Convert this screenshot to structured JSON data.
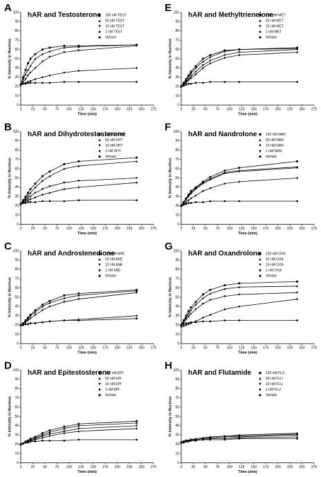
{
  "chart_data": [
    {
      "type": "line",
      "label": "A",
      "title": "hAR and Testosterone",
      "xlabel": "Time (min)",
      "ylabel": "% Intensity in Nucleus",
      "x": [
        0,
        5,
        10,
        15,
        20,
        30,
        45,
        60,
        90,
        120,
        240
      ],
      "xlim": [
        0,
        275
      ],
      "ylim": [
        0,
        100
      ],
      "xticks": [
        0,
        25,
        50,
        75,
        100,
        125,
        150,
        175,
        200,
        225,
        250,
        275
      ],
      "yticks": [
        0,
        10,
        20,
        30,
        40,
        50,
        60,
        70,
        80,
        90,
        100
      ],
      "series": [
        {
          "name": "100 nM TEST",
          "marker": "square",
          "color": "#000000",
          "values": [
            22,
            30,
            38,
            45,
            50,
            55,
            60,
            62,
            64,
            64,
            65
          ]
        },
        {
          "name": "50 nM TEST",
          "marker": "triangle-up",
          "color": "#000000",
          "values": [
            22,
            28,
            33,
            38,
            42,
            50,
            55,
            58,
            62,
            63,
            65
          ]
        },
        {
          "name": "10 nM TEST",
          "marker": "triangle-down",
          "color": "#000000",
          "values": [
            22,
            25,
            28,
            32,
            35,
            40,
            47,
            52,
            57,
            59,
            64
          ]
        },
        {
          "name": "1 nM TEST",
          "marker": "diamond",
          "color": "#000000",
          "values": [
            22,
            23,
            24,
            25,
            26,
            28,
            30,
            32,
            35,
            37,
            40
          ]
        },
        {
          "name": "Vehicle",
          "marker": "circle",
          "color": "#000000",
          "values": [
            22,
            23,
            23,
            24,
            24,
            24,
            24,
            24,
            25,
            25,
            25
          ]
        }
      ]
    },
    {
      "type": "line",
      "label": "B",
      "title": "hAR and Dihydrotestosterone",
      "xlabel": "Time (min)",
      "ylabel": "% Intensity in Nucleus",
      "x": [
        0,
        5,
        10,
        15,
        20,
        30,
        45,
        60,
        90,
        120,
        240
      ],
      "xlim": [
        0,
        275
      ],
      "ylim": [
        0,
        100
      ],
      "xticks": [
        0,
        25,
        50,
        75,
        100,
        125,
        150,
        175,
        200,
        225,
        250,
        275
      ],
      "yticks": [
        0,
        10,
        20,
        30,
        40,
        50,
        60,
        70,
        80,
        90,
        100
      ],
      "series": [
        {
          "name": "100 nM DHT",
          "marker": "square",
          "color": "#000000",
          "values": [
            22,
            26,
            30,
            34,
            38,
            44,
            52,
            57,
            65,
            68,
            72
          ]
        },
        {
          "name": "50 nM DHT",
          "marker": "triangle-up",
          "color": "#000000",
          "values": [
            22,
            25,
            28,
            31,
            34,
            40,
            47,
            52,
            60,
            63,
            68
          ]
        },
        {
          "name": "10 nM DHT",
          "marker": "triangle-down",
          "color": "#000000",
          "values": [
            22,
            24,
            26,
            28,
            30,
            34,
            38,
            41,
            45,
            47,
            50
          ]
        },
        {
          "name": "1 nM DHT",
          "marker": "diamond",
          "color": "#000000",
          "values": [
            22,
            23,
            25,
            26,
            27,
            29,
            32,
            34,
            38,
            40,
            45
          ]
        },
        {
          "name": "Vehicle",
          "marker": "circle",
          "color": "#000000",
          "values": [
            22,
            23,
            23,
            24,
            24,
            24,
            25,
            25,
            25,
            26,
            26
          ]
        }
      ]
    },
    {
      "type": "line",
      "label": "C",
      "title": "hAR and Androstenedione",
      "xlabel": "Time (min)",
      "ylabel": "% Intensity in Nucleus",
      "x": [
        0,
        5,
        10,
        15,
        20,
        30,
        45,
        60,
        90,
        120,
        240
      ],
      "xlim": [
        0,
        275
      ],
      "ylim": [
        0,
        100
      ],
      "xticks": [
        0,
        25,
        50,
        75,
        100,
        125,
        150,
        175,
        200,
        225,
        250,
        275
      ],
      "yticks": [
        0,
        10,
        20,
        30,
        40,
        50,
        60,
        70,
        80,
        90,
        100
      ],
      "series": [
        {
          "name": "100 nM ANE",
          "marker": "square",
          "color": "#000000",
          "values": [
            20,
            22,
            25,
            28,
            31,
            36,
            42,
            46,
            52,
            54,
            58
          ]
        },
        {
          "name": "50 nM ANE",
          "marker": "triangle-up",
          "color": "#000000",
          "values": [
            20,
            22,
            24,
            27,
            30,
            34,
            40,
            44,
            49,
            52,
            57
          ]
        },
        {
          "name": "10 nM ANE",
          "marker": "triangle-down",
          "color": "#000000",
          "values": [
            20,
            21,
            23,
            25,
            27,
            31,
            36,
            40,
            45,
            48,
            55
          ]
        },
        {
          "name": "1 nM ANE",
          "marker": "diamond",
          "color": "#000000",
          "values": [
            20,
            20,
            21,
            21,
            22,
            22,
            23,
            24,
            25,
            26,
            30
          ]
        },
        {
          "name": "Vehicle",
          "marker": "circle",
          "color": "#000000",
          "values": [
            20,
            20,
            21,
            21,
            22,
            22,
            23,
            24,
            25,
            25,
            27
          ]
        }
      ]
    },
    {
      "type": "line",
      "label": "D",
      "title": "hAR and Epitestosterone",
      "xlabel": "Time (min)",
      "ylabel": "% Intensity in Nucleus",
      "x": [
        0,
        5,
        10,
        15,
        20,
        30,
        45,
        60,
        90,
        120,
        240
      ],
      "xlim": [
        0,
        275
      ],
      "ylim": [
        0,
        100
      ],
      "xticks": [
        0,
        25,
        50,
        75,
        100,
        125,
        150,
        175,
        200,
        225,
        250,
        275
      ],
      "yticks": [
        0,
        10,
        20,
        30,
        40,
        50,
        60,
        70,
        80,
        90,
        100
      ],
      "series": [
        {
          "name": "100 nM EPI",
          "marker": "square",
          "color": "#000000",
          "values": [
            20,
            21,
            23,
            24,
            26,
            28,
            32,
            35,
            39,
            42,
            45
          ]
        },
        {
          "name": "50 nM EPI",
          "marker": "triangle-up",
          "color": "#000000",
          "values": [
            20,
            21,
            22,
            24,
            25,
            27,
            30,
            33,
            37,
            40,
            43
          ]
        },
        {
          "name": "10 nM EPI",
          "marker": "triangle-down",
          "color": "#000000",
          "values": [
            20,
            21,
            22,
            23,
            24,
            26,
            29,
            31,
            34,
            37,
            40
          ]
        },
        {
          "name": "1 nM EPI",
          "marker": "diamond",
          "color": "#000000",
          "values": [
            20,
            21,
            22,
            22,
            23,
            25,
            27,
            29,
            32,
            34,
            37
          ]
        },
        {
          "name": "Vehicle",
          "marker": "circle",
          "color": "#000000",
          "values": [
            20,
            21,
            22,
            22,
            23,
            23,
            24,
            24,
            24,
            25,
            25
          ]
        }
      ]
    },
    {
      "type": "line",
      "label": "E",
      "title": "hAR and Methyltrienelone",
      "xlabel": "Time (min)",
      "ylabel": "% Intensity in Nucleus",
      "x": [
        0,
        5,
        10,
        15,
        20,
        30,
        45,
        60,
        90,
        120,
        240
      ],
      "xlim": [
        0,
        275
      ],
      "ylim": [
        0,
        100
      ],
      "xticks": [
        0,
        25,
        50,
        75,
        100,
        125,
        150,
        175,
        200,
        225,
        250,
        275
      ],
      "yticks": [
        0,
        10,
        20,
        30,
        40,
        50,
        60,
        70,
        80,
        90,
        100
      ],
      "series": [
        {
          "name": "100 nM MET",
          "marker": "square",
          "color": "#000000",
          "values": [
            20,
            24,
            28,
            32,
            36,
            42,
            50,
            54,
            59,
            60,
            62
          ]
        },
        {
          "name": "50 nM MET",
          "marker": "triangle-up",
          "color": "#000000",
          "values": [
            20,
            23,
            27,
            31,
            34,
            40,
            47,
            52,
            58,
            60,
            61
          ]
        },
        {
          "name": "10 nM MET",
          "marker": "triangle-down",
          "color": "#000000",
          "values": [
            20,
            22,
            25,
            28,
            31,
            36,
            43,
            48,
            54,
            57,
            60
          ]
        },
        {
          "name": "1 nM MET",
          "marker": "diamond",
          "color": "#000000",
          "values": [
            20,
            22,
            24,
            27,
            29,
            33,
            40,
            45,
            51,
            54,
            57
          ]
        },
        {
          "name": "Vehicle",
          "marker": "circle",
          "color": "#000000",
          "values": [
            20,
            21,
            22,
            23,
            23,
            24,
            24,
            25,
            25,
            25,
            25
          ]
        }
      ]
    },
    {
      "type": "line",
      "label": "F",
      "title": "hAR and Nandrolone",
      "xlabel": "Time (min)",
      "ylabel": "% Intensity in Nucleus",
      "x": [
        0,
        5,
        10,
        15,
        20,
        30,
        45,
        60,
        90,
        120,
        240
      ],
      "xlim": [
        0,
        275
      ],
      "ylim": [
        0,
        100
      ],
      "xticks": [
        0,
        25,
        50,
        75,
        100,
        125,
        150,
        175,
        200,
        225,
        250,
        275
      ],
      "yticks": [
        0,
        10,
        20,
        30,
        40,
        50,
        60,
        70,
        80,
        90,
        100
      ],
      "series": [
        {
          "name": "100 nM NAN",
          "marker": "square",
          "color": "#000000",
          "values": [
            20,
            24,
            28,
            32,
            36,
            40,
            46,
            51,
            58,
            61,
            68
          ]
        },
        {
          "name": "50 nM NAN",
          "marker": "triangle-up",
          "color": "#000000",
          "values": [
            20,
            24,
            27,
            31,
            34,
            39,
            45,
            49,
            56,
            58,
            62
          ]
        },
        {
          "name": "10 nM NAN",
          "marker": "triangle-down",
          "color": "#000000",
          "values": [
            20,
            23,
            27,
            30,
            33,
            38,
            44,
            48,
            55,
            57,
            61
          ]
        },
        {
          "name": "1 nM NAN",
          "marker": "diamond",
          "color": "#000000",
          "values": [
            20,
            22,
            24,
            26,
            28,
            31,
            36,
            39,
            44,
            46,
            50
          ]
        },
        {
          "name": "Vehicle",
          "marker": "circle",
          "color": "#000000",
          "values": [
            20,
            21,
            22,
            23,
            23,
            24,
            24,
            25,
            25,
            25,
            25
          ]
        }
      ]
    },
    {
      "type": "line",
      "label": "G",
      "title": "hAR and Oxandrolone",
      "xlabel": "Time (min)",
      "ylabel": "% Intensity in Nucleus",
      "x": [
        0,
        5,
        10,
        15,
        20,
        30,
        45,
        60,
        90,
        120,
        240
      ],
      "xlim": [
        0,
        275
      ],
      "ylim": [
        0,
        100
      ],
      "xticks": [
        0,
        25,
        50,
        75,
        100,
        125,
        150,
        175,
        200,
        225,
        250,
        275
      ],
      "yticks": [
        0,
        10,
        20,
        30,
        40,
        50,
        60,
        70,
        80,
        90,
        100
      ],
      "series": [
        {
          "name": "100 nM OXA",
          "marker": "square",
          "color": "#000000",
          "values": [
            20,
            25,
            30,
            35,
            39,
            45,
            53,
            58,
            63,
            65,
            67
          ]
        },
        {
          "name": "50 nM OXA",
          "marker": "triangle-up",
          "color": "#000000",
          "values": [
            20,
            24,
            28,
            32,
            36,
            42,
            49,
            54,
            59,
            61,
            62
          ]
        },
        {
          "name": "10 nM OXA",
          "marker": "triangle-down",
          "color": "#000000",
          "values": [
            20,
            23,
            26,
            29,
            32,
            37,
            43,
            47,
            51,
            53,
            55
          ]
        },
        {
          "name": "1 nM OXA",
          "marker": "diamond",
          "color": "#000000",
          "values": [
            18,
            19,
            20,
            21,
            22,
            24,
            28,
            31,
            37,
            40,
            48
          ]
        },
        {
          "name": "Vehicle",
          "marker": "circle",
          "color": "#000000",
          "values": [
            20,
            21,
            22,
            22,
            23,
            23,
            24,
            24,
            25,
            25,
            25
          ]
        }
      ]
    },
    {
      "type": "line",
      "label": "H",
      "title": "hAR and Flutamide",
      "xlabel": "Time (min)",
      "ylabel": "% Intensity in Nucleus",
      "x": [
        0,
        5,
        10,
        15,
        20,
        30,
        45,
        60,
        90,
        120,
        240
      ],
      "xlim": [
        0,
        275
      ],
      "ylim": [
        0,
        100
      ],
      "xticks": [
        0,
        25,
        50,
        75,
        100,
        125,
        150,
        175,
        200,
        225,
        250,
        275
      ],
      "yticks": [
        0,
        10,
        20,
        30,
        40,
        50,
        60,
        70,
        80,
        90,
        100
      ],
      "series": [
        {
          "name": "100 nM FLU",
          "marker": "square",
          "color": "#000000",
          "values": [
            22,
            23,
            24,
            24,
            25,
            25,
            26,
            27,
            28,
            29,
            31
          ]
        },
        {
          "name": "50 nM FLU",
          "marker": "triangle-up",
          "color": "#000000",
          "values": [
            22,
            23,
            24,
            24,
            25,
            26,
            27,
            28,
            29,
            30,
            32
          ]
        },
        {
          "name": "10 nM FLU",
          "marker": "triangle-down",
          "color": "#000000",
          "values": [
            22,
            22,
            23,
            24,
            24,
            25,
            26,
            27,
            28,
            28,
            30
          ]
        },
        {
          "name": "1 nM FLU",
          "marker": "diamond",
          "color": "#000000",
          "values": [
            22,
            22,
            23,
            23,
            24,
            24,
            25,
            26,
            26,
            27,
            28
          ]
        },
        {
          "name": "Vehicle",
          "marker": "circle",
          "color": "#000000",
          "values": [
            22,
            22,
            23,
            23,
            24,
            24,
            25,
            25,
            25,
            26,
            26
          ]
        }
      ]
    }
  ]
}
